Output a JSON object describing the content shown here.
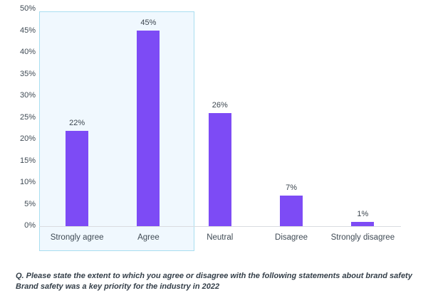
{
  "chart_data": {
    "type": "bar",
    "title": "",
    "xlabel": "",
    "ylabel": "",
    "grid": false,
    "legend": null,
    "categories": [
      "Strongly agree",
      "Agree",
      "Neutral",
      "Disagree",
      "Strongly disagree"
    ],
    "values": [
      22,
      45,
      26,
      7,
      1
    ],
    "value_labels": [
      "22%",
      "45%",
      "26%",
      "7%",
      "1%"
    ],
    "y_ticks": [
      0,
      5,
      10,
      15,
      20,
      25,
      30,
      35,
      40,
      45,
      50
    ],
    "y_tick_labels": [
      "0%",
      "5%",
      "10%",
      "15%",
      "20%",
      "25%",
      "30%",
      "35%",
      "40%",
      "45%",
      "50%"
    ],
    "ylim": [
      0,
      50
    ],
    "bar_color": "#7d4bf5",
    "highlight": {
      "categories": [
        "Strongly agree",
        "Agree"
      ],
      "fill": "#f0f8fe",
      "border": "#a9def0"
    }
  },
  "colors": {
    "axis_text": "#3f4a54",
    "baseline": "#d9dce0",
    "caption_text": "#333e48",
    "background": "#ffffff"
  },
  "caption": {
    "line1": "Q. Please state the extent to which you agree or disagree with the following statements about brand safety",
    "line2": "Brand safety was a key priority for the industry in 2022"
  }
}
